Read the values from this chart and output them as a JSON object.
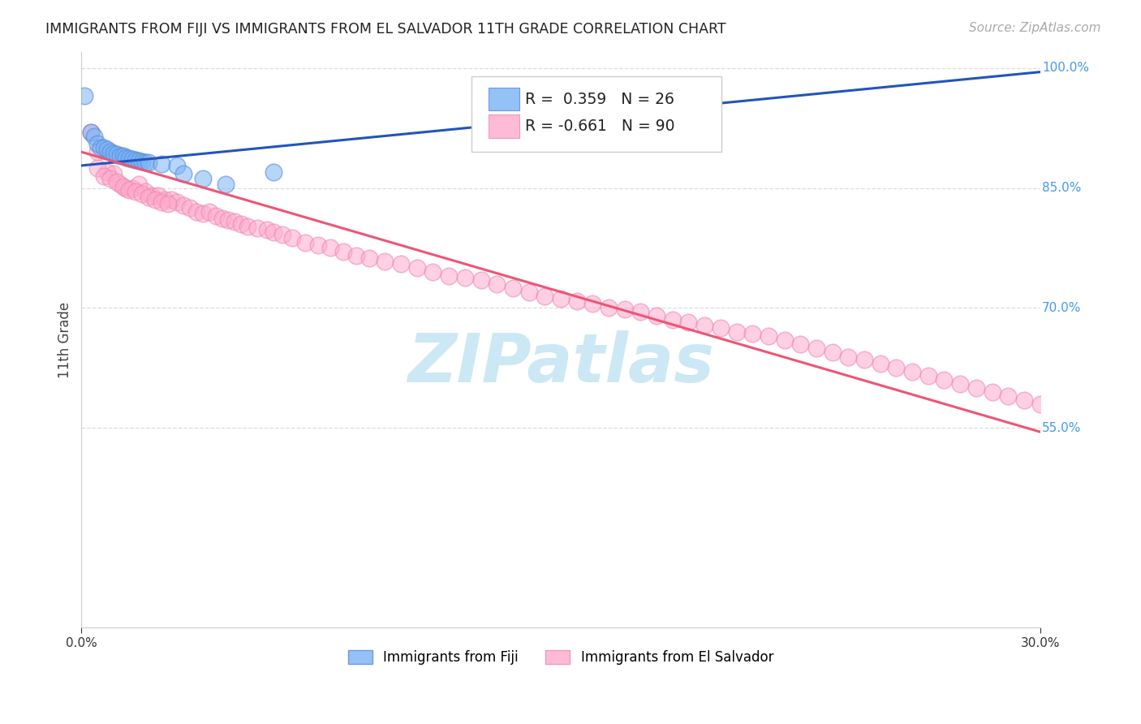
{
  "title": "IMMIGRANTS FROM FIJI VS IMMIGRANTS FROM EL SALVADOR 11TH GRADE CORRELATION CHART",
  "source": "Source: ZipAtlas.com",
  "ylabel": "11th Grade",
  "xlim": [
    0.0,
    0.3
  ],
  "ylim": [
    0.3,
    1.02
  ],
  "fiji_color": "#7ab3f5",
  "fiji_edge_color": "#5588dd",
  "salvador_color": "#ffaacc",
  "salvador_edge_color": "#ee88aa",
  "fiji_R": 0.359,
  "fiji_N": 26,
  "salvador_R": -0.661,
  "salvador_N": 90,
  "trend_blue": "#2255bb",
  "trend_pink": "#ee5577",
  "grid_color": "#dddddd",
  "background_color": "#ffffff",
  "watermark_text": "ZIPatlas",
  "watermark_color": "#cce8f4",
  "ytick_positions_right": [
    1.0,
    0.85,
    0.7,
    0.55
  ],
  "ytick_labels_right": [
    "100.0%",
    "85.0%",
    "70.0%",
    "55.0%"
  ],
  "fiji_scatter_x": [
    0.001,
    0.003,
    0.004,
    0.005,
    0.006,
    0.007,
    0.008,
    0.009,
    0.01,
    0.011,
    0.012,
    0.013,
    0.014,
    0.015,
    0.016,
    0.017,
    0.018,
    0.019,
    0.02,
    0.021,
    0.025,
    0.03,
    0.032,
    0.038,
    0.045,
    0.06
  ],
  "fiji_scatter_y": [
    0.965,
    0.92,
    0.915,
    0.905,
    0.9,
    0.9,
    0.898,
    0.895,
    0.893,
    0.892,
    0.89,
    0.89,
    0.888,
    0.887,
    0.886,
    0.885,
    0.884,
    0.883,
    0.882,
    0.882,
    0.88,
    0.878,
    0.868,
    0.862,
    0.855,
    0.87
  ],
  "salvador_scatter_x": [
    0.003,
    0.005,
    0.008,
    0.01,
    0.012,
    0.014,
    0.016,
    0.018,
    0.02,
    0.022,
    0.024,
    0.026,
    0.028,
    0.03,
    0.032,
    0.034,
    0.036,
    0.038,
    0.04,
    0.042,
    0.044,
    0.046,
    0.048,
    0.05,
    0.052,
    0.055,
    0.058,
    0.06,
    0.063,
    0.066,
    0.07,
    0.074,
    0.078,
    0.082,
    0.086,
    0.09,
    0.095,
    0.1,
    0.105,
    0.11,
    0.115,
    0.12,
    0.125,
    0.13,
    0.135,
    0.14,
    0.145,
    0.15,
    0.155,
    0.16,
    0.165,
    0.17,
    0.175,
    0.18,
    0.185,
    0.19,
    0.195,
    0.2,
    0.205,
    0.21,
    0.215,
    0.22,
    0.225,
    0.23,
    0.235,
    0.24,
    0.245,
    0.25,
    0.255,
    0.26,
    0.265,
    0.27,
    0.275,
    0.28,
    0.285,
    0.29,
    0.295,
    0.3,
    0.005,
    0.007,
    0.009,
    0.011,
    0.013,
    0.015,
    0.017,
    0.019,
    0.021,
    0.023,
    0.025,
    0.027
  ],
  "salvador_scatter_y": [
    0.92,
    0.895,
    0.87,
    0.868,
    0.855,
    0.85,
    0.85,
    0.855,
    0.845,
    0.84,
    0.84,
    0.835,
    0.835,
    0.832,
    0.828,
    0.825,
    0.82,
    0.818,
    0.82,
    0.815,
    0.812,
    0.81,
    0.808,
    0.805,
    0.802,
    0.8,
    0.798,
    0.795,
    0.792,
    0.788,
    0.782,
    0.778,
    0.775,
    0.77,
    0.765,
    0.762,
    0.758,
    0.755,
    0.75,
    0.745,
    0.74,
    0.738,
    0.735,
    0.73,
    0.725,
    0.72,
    0.715,
    0.712,
    0.708,
    0.705,
    0.7,
    0.698,
    0.695,
    0.69,
    0.685,
    0.682,
    0.678,
    0.675,
    0.67,
    0.668,
    0.665,
    0.66,
    0.655,
    0.65,
    0.645,
    0.638,
    0.635,
    0.63,
    0.625,
    0.62,
    0.615,
    0.61,
    0.605,
    0.6,
    0.595,
    0.59,
    0.585,
    0.58,
    0.875,
    0.865,
    0.862,
    0.858,
    0.852,
    0.848,
    0.845,
    0.842,
    0.838,
    0.835,
    0.832,
    0.83
  ],
  "fiji_line_x0": 0.0,
  "fiji_line_x1": 0.3,
  "fiji_line_y0": 0.878,
  "fiji_line_y1": 0.995,
  "salvador_line_x0": 0.0,
  "salvador_line_x1": 0.3,
  "salvador_line_y0": 0.895,
  "salvador_line_y1": 0.545
}
